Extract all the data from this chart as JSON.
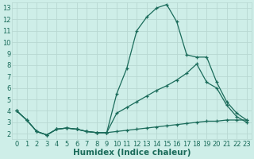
{
  "xlabel": "Humidex (Indice chaleur)",
  "xlim": [
    -0.5,
    23.5
  ],
  "ylim": [
    1.5,
    13.5
  ],
  "xticks": [
    0,
    1,
    2,
    3,
    4,
    5,
    6,
    7,
    8,
    9,
    10,
    11,
    12,
    13,
    14,
    15,
    16,
    17,
    18,
    19,
    20,
    21,
    22,
    23
  ],
  "yticks": [
    2,
    3,
    4,
    5,
    6,
    7,
    8,
    9,
    10,
    11,
    12,
    13
  ],
  "bg_color": "#ceeee8",
  "grid_color": "#b8d8d2",
  "line_color": "#1a6b5a",
  "line1_x": [
    0,
    1,
    2,
    3,
    4,
    5,
    6,
    7,
    8,
    9,
    10,
    11,
    12,
    13,
    14,
    15,
    16,
    17,
    18,
    19,
    20,
    21,
    22,
    23
  ],
  "line1_y": [
    4.0,
    3.2,
    2.2,
    1.9,
    2.4,
    2.5,
    2.4,
    2.2,
    2.1,
    2.1,
    2.2,
    2.3,
    2.4,
    2.5,
    2.6,
    2.7,
    2.8,
    2.9,
    3.0,
    3.1,
    3.1,
    3.2,
    3.2,
    3.2
  ],
  "line2_x": [
    0,
    1,
    2,
    3,
    4,
    5,
    6,
    7,
    8,
    9,
    10,
    11,
    12,
    13,
    14,
    15,
    16,
    17,
    18,
    19,
    20,
    21,
    22,
    23
  ],
  "line2_y": [
    4.0,
    3.2,
    2.2,
    1.9,
    2.4,
    2.5,
    2.4,
    2.2,
    2.1,
    2.1,
    5.5,
    7.7,
    11.0,
    12.2,
    13.0,
    13.3,
    11.8,
    8.9,
    8.7,
    8.7,
    6.5,
    4.8,
    3.8,
    3.2
  ],
  "line3_x": [
    0,
    1,
    2,
    3,
    4,
    5,
    6,
    7,
    8,
    9,
    10,
    11,
    12,
    13,
    14,
    15,
    16,
    17,
    18,
    19,
    20,
    21,
    22,
    23
  ],
  "line3_y": [
    4.0,
    3.2,
    2.2,
    1.9,
    2.4,
    2.5,
    2.4,
    2.2,
    2.1,
    2.1,
    3.8,
    4.3,
    4.8,
    5.3,
    5.8,
    6.2,
    6.7,
    7.3,
    8.1,
    6.5,
    6.0,
    4.5,
    3.5,
    3.0
  ],
  "tick_fontsize": 6,
  "label_fontsize": 7.5
}
